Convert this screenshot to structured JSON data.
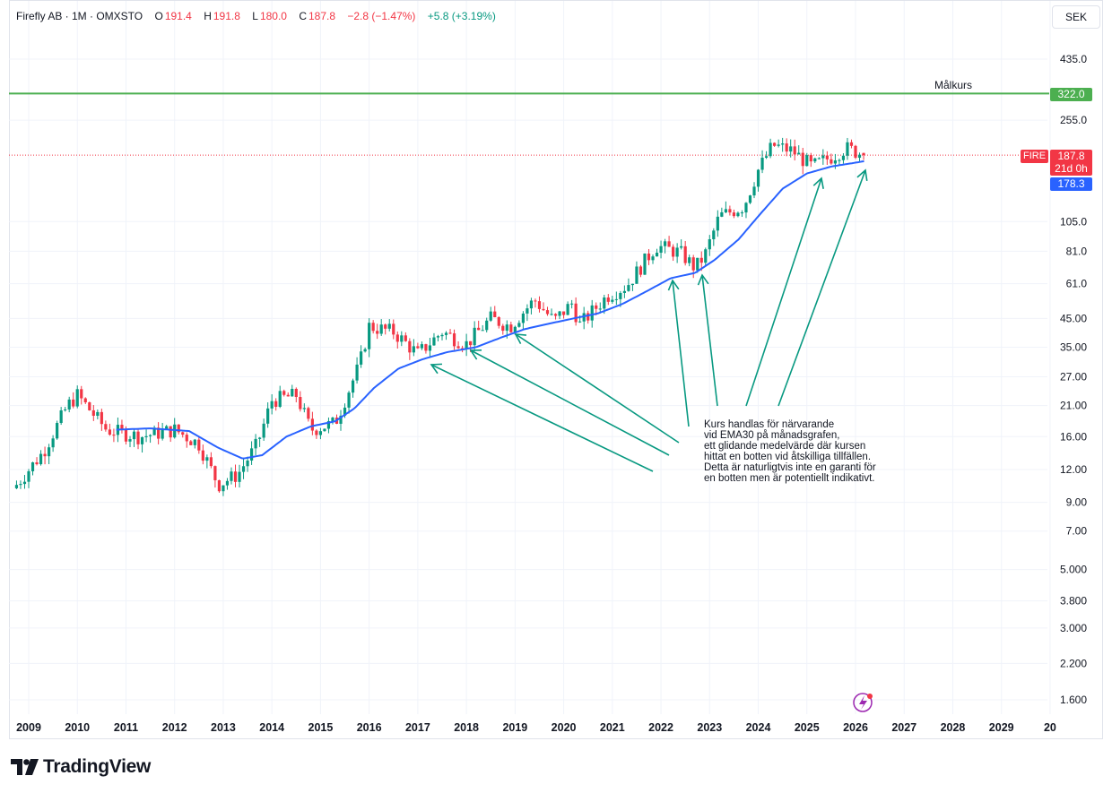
{
  "legend": {
    "symbol": "Firefly AB · 1M · OMXSTO",
    "open_label": "O",
    "open": "191.4",
    "high_label": "H",
    "high": "191.8",
    "low_label": "L",
    "low": "180.0",
    "close_label": "C",
    "close": "187.8",
    "change": "−2.8 (−1.47%)",
    "ema_change": "+5.8 (+3.19%)"
  },
  "currency": "SEK",
  "brand": "TradingView",
  "annotation": "Kurs handlas för närvarande\nvid EMA30 på månadsgrafen,\nett glidande medelvärde där kursen\nhittat en botten vid åtskilliga tillfällen.\nDetta är naturligtvis inte en garanti för\nen botten men är potentiellt indikativt.",
  "target": {
    "label": "Målkurs",
    "value": "322.0"
  },
  "price_tags": {
    "symbol": "FIRE",
    "last": "187.8",
    "countdown": "21d 0h",
    "ema": "178.3"
  },
  "colors": {
    "up": "#089981",
    "down": "#f23645",
    "ema": "#2962ff",
    "target": "#4caf50",
    "arrow": "#089981"
  },
  "chart_data": {
    "type": "candlestick",
    "title": "Firefly AB · 1M · OMXSTO",
    "scale": "log",
    "ylim": [
      1.45,
      560
    ],
    "y_ticks": [
      "1.600",
      "2.200",
      "3.000",
      "3.800",
      "5.000",
      "7.00",
      "9.00",
      "12.00",
      "16.00",
      "21.00",
      "27.00",
      "35.00",
      "45.00",
      "61.0",
      "81.0",
      "105.0",
      "255.0",
      "435.0"
    ],
    "x_ticks": [
      "2009",
      "2010",
      "2011",
      "2012",
      "2013",
      "2014",
      "2015",
      "2016",
      "2017",
      "2018",
      "2019",
      "2020",
      "2021",
      "2022",
      "2023",
      "2024",
      "2025",
      "2026",
      "2027",
      "2028",
      "2029",
      "20"
    ],
    "series": [
      {
        "name": "Firefly AB (approx. monthly close)",
        "keypoints": [
          [
            2008.75,
            10.5
          ],
          [
            2009.3,
            14
          ],
          [
            2009.8,
            21
          ],
          [
            2010.0,
            23
          ],
          [
            2010.6,
            17
          ],
          [
            2011.3,
            16
          ],
          [
            2012.0,
            17
          ],
          [
            2012.5,
            15
          ],
          [
            2012.9,
            10.5
          ],
          [
            2013.3,
            11.5
          ],
          [
            2013.7,
            15
          ],
          [
            2014.0,
            22
          ],
          [
            2014.5,
            23
          ],
          [
            2014.8,
            17
          ],
          [
            2015.3,
            18
          ],
          [
            2015.8,
            30
          ],
          [
            2016.0,
            42
          ],
          [
            2016.5,
            40
          ],
          [
            2017.0,
            33
          ],
          [
            2017.5,
            40
          ],
          [
            2018.0,
            36
          ],
          [
            2018.5,
            45
          ],
          [
            2018.9,
            42
          ],
          [
            2019.4,
            53
          ],
          [
            2019.8,
            44
          ],
          [
            2020.2,
            52
          ],
          [
            2020.3,
            42
          ],
          [
            2020.9,
            55
          ],
          [
            2021.3,
            60
          ],
          [
            2021.9,
            85
          ],
          [
            2022.4,
            80
          ],
          [
            2022.7,
            70
          ],
          [
            2022.9,
            78
          ],
          [
            2023.2,
            110
          ],
          [
            2023.7,
            120
          ],
          [
            2024.0,
            165
          ],
          [
            2024.3,
            205
          ],
          [
            2024.7,
            195
          ],
          [
            2025.1,
            170
          ],
          [
            2025.5,
            185
          ],
          [
            2025.8,
            200
          ],
          [
            2026.2,
            187.8
          ]
        ]
      },
      {
        "name": "EMA30",
        "keypoints": [
          [
            2010.8,
            17
          ],
          [
            2011.5,
            17.2
          ],
          [
            2012.3,
            16.8
          ],
          [
            2012.9,
            14.5
          ],
          [
            2013.4,
            13.2
          ],
          [
            2013.8,
            13.6
          ],
          [
            2014.3,
            16
          ],
          [
            2014.8,
            17.5
          ],
          [
            2015.3,
            18.3
          ],
          [
            2015.7,
            20.5
          ],
          [
            2016.1,
            24.5
          ],
          [
            2016.6,
            29
          ],
          [
            2017.1,
            31.5
          ],
          [
            2017.6,
            33.5
          ],
          [
            2018.2,
            35
          ],
          [
            2018.7,
            38
          ],
          [
            2019.2,
            41
          ],
          [
            2019.7,
            43
          ],
          [
            2020.2,
            45
          ],
          [
            2020.7,
            47
          ],
          [
            2021.2,
            51
          ],
          [
            2021.7,
            57
          ],
          [
            2022.2,
            64
          ],
          [
            2022.7,
            67
          ],
          [
            2023.1,
            75
          ],
          [
            2023.6,
            90
          ],
          [
            2024.0,
            110
          ],
          [
            2024.5,
            140
          ],
          [
            2025.0,
            160
          ],
          [
            2025.5,
            170
          ],
          [
            2026.2,
            178.3
          ]
        ]
      }
    ],
    "horizontal_line": {
      "label": "Målkurs",
      "value": 322.0
    },
    "last_price": 187.8,
    "ema_value": 178.3
  }
}
